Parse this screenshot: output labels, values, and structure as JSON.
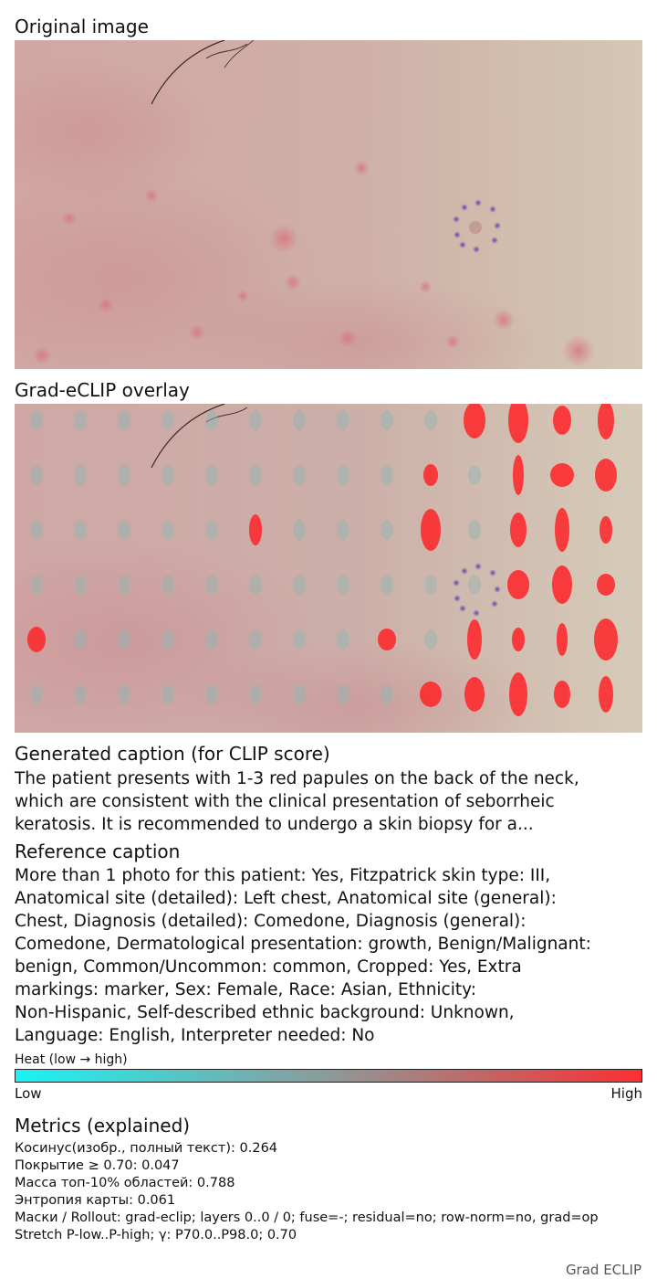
{
  "panels": {
    "original_title": "Original image",
    "overlay_title": "Grad-eCLIP overlay"
  },
  "generated": {
    "title": "Generated caption (for CLIP score)",
    "lines": [
      "The patient presents with 1-3 red papules on the back of the neck,",
      "which are consistent with the clinical presentation of seborrheic",
      "keratosis. It is recommended to undergo a skin biopsy for a..."
    ]
  },
  "reference": {
    "title": "Reference caption",
    "lines": [
      "More than 1 photo for this patient: Yes, Fitzpatrick skin type: III,",
      "Anatomical site (detailed): Left chest, Anatomical site (general):",
      "Chest, Diagnosis (detailed): Comedone, Diagnosis (general):",
      "Comedone, Dermatological presentation: growth, Benign/Malignant:",
      "benign, Common/Uncommon: common, Cropped: Yes, Extra",
      "markings: marker, Sex: Female, Race: Asian, Ethnicity:",
      "Non-Hispanic, Self-described ethnic background: Unknown,",
      "Language: English, Interpreter needed: No"
    ]
  },
  "heat": {
    "label": "Heat (low → high)",
    "low": "Low",
    "high": "High",
    "colors": {
      "low": "#19f3f6",
      "mid": "#8d9a98",
      "high": "#fb2f32"
    }
  },
  "metrics": {
    "title": "Metrics (explained)",
    "lines": [
      "Косинус(изобр., полный текст): 0.264",
      "Покрытие ≥ 0.70: 0.047",
      "Масса топ-10% областей: 0.788",
      "Энтропия карты: 0.061",
      "Маски / Rollout: grad-eclip; layers 0..0 / 0; fuse=-; residual=no; row-norm=no, grad=op",
      "Stretch P-low..P-high; γ: P70.0..P98.0; 0.70"
    ]
  },
  "footer": "Grad ECLIP"
}
